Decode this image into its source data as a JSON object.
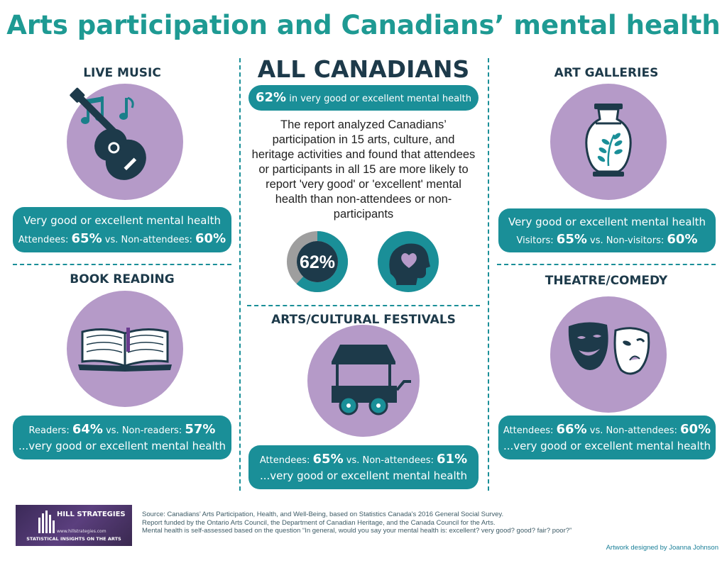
{
  "title": "Arts participation and Canadians’ mental health",
  "colors": {
    "teal": "#1a8f98",
    "title_teal": "#1e9a93",
    "lavender": "#b59ac8",
    "navy": "#1d3a4a",
    "gray": "#9e9e9e"
  },
  "live_music": {
    "title": "LIVE MUSIC",
    "icon": "guitar-icon",
    "line1": "Very good or excellent mental health",
    "prefix": "Attendees:",
    "a_value": "65%",
    "mid": "vs. Non-attendees:",
    "b_value": "60%"
  },
  "book_reading": {
    "title": "BOOK READING",
    "icon": "open-book-icon",
    "prefix": "Readers:",
    "a_value": "64%",
    "mid": "vs. Non-readers:",
    "b_value": "57%",
    "line2": "...very good or excellent mental health"
  },
  "art_galleries": {
    "title": "ART GALLERIES",
    "icon": "vase-icon",
    "line1": "Very good or excellent mental health",
    "prefix": "Visitors:",
    "a_value": "65%",
    "mid": "vs. Non-visitors:",
    "b_value": "60%"
  },
  "theatre": {
    "title": "THEATRE/COMEDY",
    "icon": "theatre-masks-icon",
    "prefix": "Attendees:",
    "a_value": "66%",
    "mid": "vs. Non-attendees:",
    "b_value": "60%",
    "line2": "...very good or excellent mental health"
  },
  "all_canadians": {
    "title": "ALL CANADIANS",
    "pill_value": "62%",
    "pill_text": "in very good or excellent mental health",
    "text": "The report analyzed Canadians’ participation in 15 arts, culture, and heritage activities and found that attendees or participants in all 15 are more likely to report 'very good' or 'excellent' mental health than non-attendees or non-participants",
    "donut_label": "62%",
    "donut_fraction": 0.62,
    "head_icon": "head-heart-icon"
  },
  "festivals": {
    "title": "ARTS/CULTURAL FESTIVALS",
    "icon": "food-cart-icon",
    "prefix": "Attendees:",
    "a_value": "65%",
    "mid": "vs. Non-attendees:",
    "b_value": "61%",
    "line2": "...very good or excellent mental health"
  },
  "footer": {
    "logo_brand": "HILL STRATEGIES",
    "logo_url": "www.hillstrategies.com",
    "logo_tagline": "STATISTICAL INSIGHTS ON THE ARTS",
    "source": "Source: Canadians’ Arts Participation, Health, and Well-Being, based on Statistics Canada's 2016 General Social Survey.",
    "funding": "Report funded by the Ontario Arts Council, the Department of Canadian Heritage, and the Canada Council for the Arts.",
    "note": "Mental health is self-assessed based on the question “In general, would you say your mental health is: excellent? very good? good? fair? poor?”",
    "credit": "Artwork designed by Joanna Johnson"
  }
}
